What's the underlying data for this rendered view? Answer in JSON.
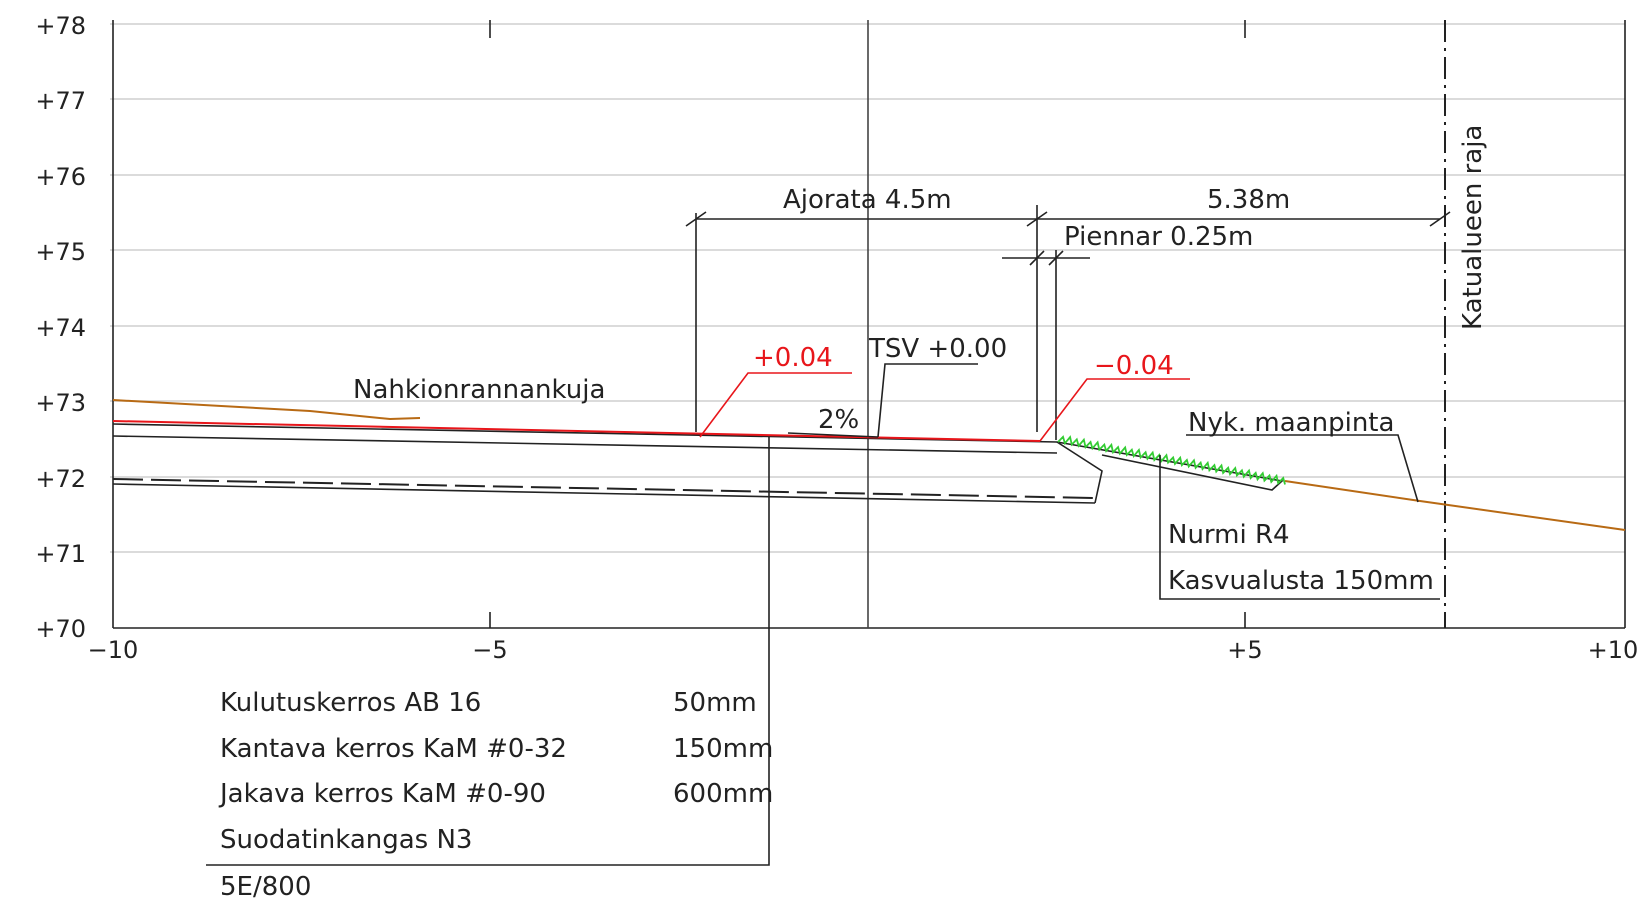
{
  "drawing": {
    "y_axis_labels": [
      "+78",
      "+77",
      "+76",
      "+75",
      "+74",
      "+73",
      "+72",
      "+71",
      "+70"
    ],
    "x_axis_labels": [
      "−10",
      "−5",
      "+5",
      "+10"
    ],
    "dimensions": {
      "carriageway": "Ajorata 4.5m",
      "right_width": "5.38m",
      "shoulder": "Piennar 0.25m"
    },
    "annotations": {
      "road_name": "Nahkionrannankuja",
      "elev_left": "+0.04",
      "elev_right": "−0.04",
      "design_level": "TSV +0.00",
      "slope": "2%",
      "existing_ground": "Nyk. maanpinta",
      "grass": "Nurmi R4",
      "growth_layer": "Kasvualusta 150mm",
      "street_boundary": "Katualueen raja"
    },
    "layers": [
      {
        "name": "Kulutuskerros AB 16",
        "thickness": "50mm"
      },
      {
        "name": "Kantava kerros KaM #0-32",
        "thickness": "150mm"
      },
      {
        "name": "Jakava kerros KaM #0-90",
        "thickness": "600mm"
      },
      {
        "name": "Suodatinkangas N3",
        "thickness": ""
      }
    ],
    "design_class": "5E/800",
    "colors": {
      "grid": "#cfcfcf",
      "linework": "#222222",
      "design_surface": "#e8161b",
      "existing_ground": "#b86a14",
      "grass": "#33cc33"
    }
  }
}
